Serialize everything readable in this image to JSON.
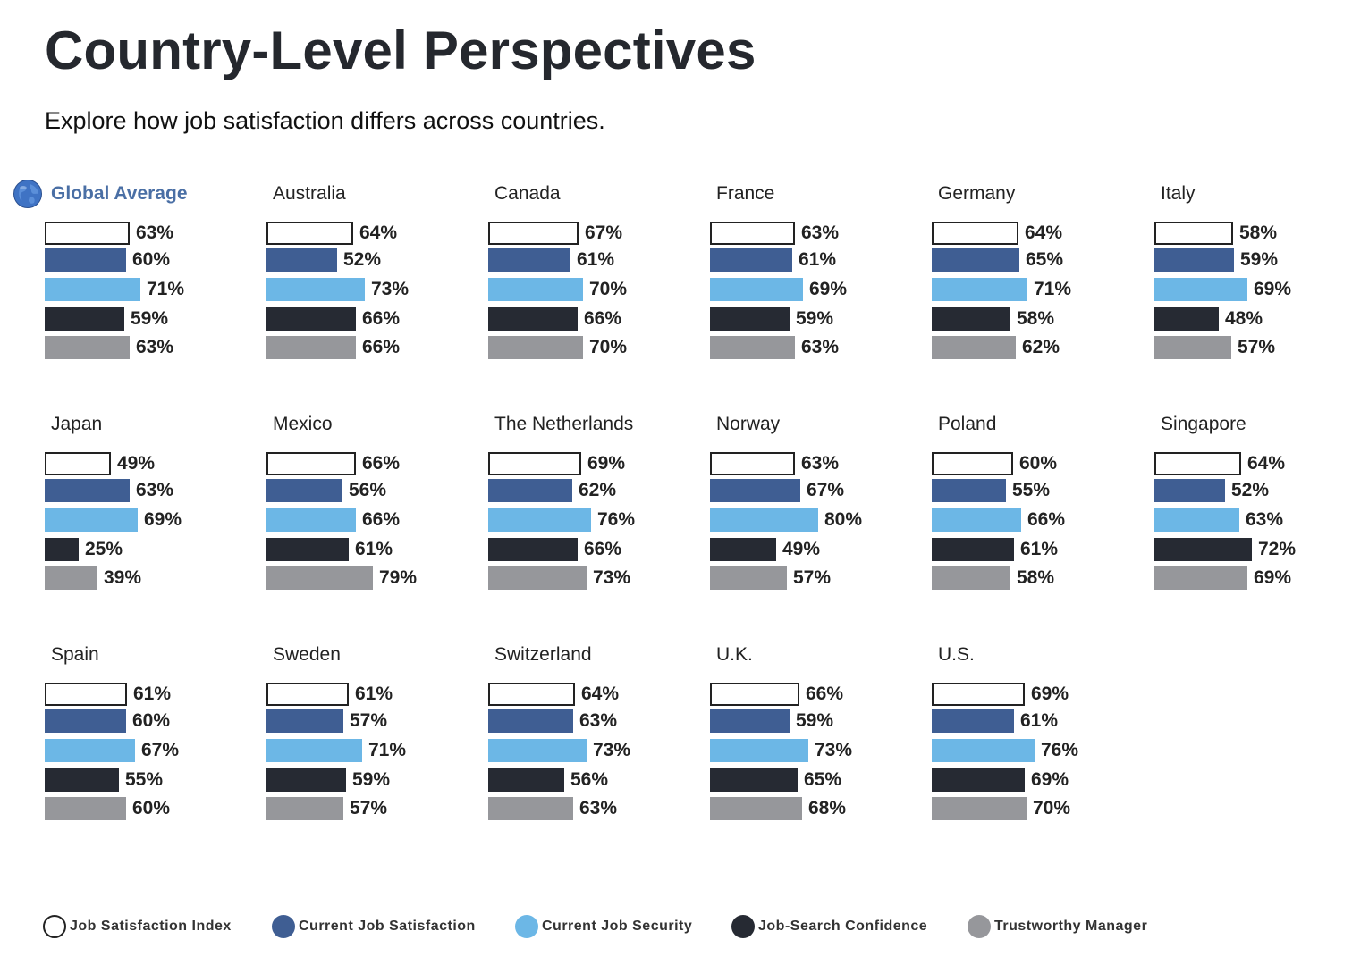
{
  "header": {
    "title": "Country-Level Perspectives",
    "subtitle": "Explore how job satisfaction differs across countries."
  },
  "global_icon": "globe-icon",
  "colors": {
    "index_fill": "#ffffff",
    "index_stroke": "#222222",
    "current_job_satisfaction": "#3f5e93",
    "current_job_security": "#6cb7e6",
    "job_search_confidence": "#262a33",
    "trustworthy_manager": "#96979b",
    "global_title": "#4a6fa5"
  },
  "legend": [
    {
      "label": "Job Satisfaction Index",
      "color": "#ffffff",
      "outline": true
    },
    {
      "label": "Current Job Satisfaction",
      "color": "#3f5e93"
    },
    {
      "label": "Current Job Security",
      "color": "#6cb7e6"
    },
    {
      "label": "Job-Search Confidence",
      "color": "#262a33"
    },
    {
      "label": "Trustworthy Manager",
      "color": "#96979b"
    }
  ],
  "chart_data": {
    "type": "bar",
    "orientation": "horizontal",
    "title": "Country-Level Perspectives",
    "subtitle": "Explore how job satisfaction differs across countries.",
    "metrics": [
      "Job Satisfaction Index",
      "Current Job Satisfaction",
      "Current Job Security",
      "Job-Search Confidence",
      "Trustworthy Manager"
    ],
    "unit": "%",
    "xlim": [
      0,
      100
    ],
    "grid": false,
    "legend_position": "bottom",
    "panels": [
      {
        "name": "Global Average",
        "global": true,
        "values": [
          63,
          60,
          71,
          59,
          63
        ]
      },
      {
        "name": "Australia",
        "values": [
          64,
          52,
          73,
          66,
          66
        ]
      },
      {
        "name": "Canada",
        "values": [
          67,
          61,
          70,
          66,
          70
        ]
      },
      {
        "name": "France",
        "values": [
          63,
          61,
          69,
          59,
          63
        ]
      },
      {
        "name": "Germany",
        "values": [
          64,
          65,
          71,
          58,
          62
        ]
      },
      {
        "name": "Italy",
        "values": [
          58,
          59,
          69,
          48,
          57
        ]
      },
      {
        "name": "Japan",
        "values": [
          49,
          63,
          69,
          25,
          39
        ]
      },
      {
        "name": "Mexico",
        "values": [
          66,
          56,
          66,
          61,
          79
        ]
      },
      {
        "name": "The Netherlands",
        "values": [
          69,
          62,
          76,
          66,
          73
        ]
      },
      {
        "name": "Norway",
        "values": [
          63,
          67,
          80,
          49,
          57
        ]
      },
      {
        "name": "Poland",
        "values": [
          60,
          55,
          66,
          61,
          58
        ]
      },
      {
        "name": "Singapore",
        "values": [
          64,
          52,
          63,
          72,
          69
        ]
      },
      {
        "name": "Spain",
        "values": [
          61,
          60,
          67,
          55,
          60
        ]
      },
      {
        "name": "Sweden",
        "values": [
          61,
          57,
          71,
          59,
          57
        ]
      },
      {
        "name": "Switzerland",
        "values": [
          64,
          63,
          73,
          56,
          63
        ]
      },
      {
        "name": "U.K.",
        "values": [
          66,
          59,
          73,
          65,
          68
        ]
      },
      {
        "name": "U.S.",
        "values": [
          69,
          61,
          76,
          69,
          70
        ]
      }
    ]
  }
}
